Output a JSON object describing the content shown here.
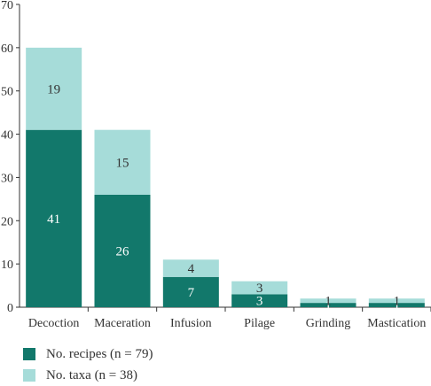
{
  "chart_data": {
    "type": "bar",
    "stacked": true,
    "categories": [
      "Decoction",
      "Maceration",
      "Infusion",
      "Pilage",
      "Grinding",
      "Mastication"
    ],
    "series": [
      {
        "name": "No. recipes (n = 79)",
        "color": "#12786b",
        "values": [
          41,
          26,
          7,
          3,
          1,
          1
        ]
      },
      {
        "name": "No. taxa (n = 38)",
        "color": "#a6dcd9",
        "values": [
          19,
          15,
          4,
          3,
          1,
          1
        ]
      }
    ],
    "ylim": [
      0,
      70
    ],
    "yticks": [
      0,
      10,
      20,
      30,
      40,
      50,
      60,
      70
    ],
    "grid": false,
    "legend_position": "bottom-left",
    "data_label_colors": [
      "#ffffff",
      "#333333"
    ]
  }
}
